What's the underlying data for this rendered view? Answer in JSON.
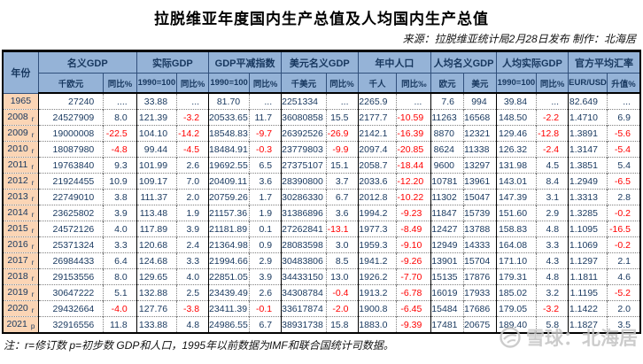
{
  "chart_data": {
    "type": "table",
    "title": "拉脱维亚年度国内生产总值及人均国内生产总值",
    "source": "来源：拉脱维亚统计局2月28日发布  制作：北海居",
    "note": "注：r=修订数 p=初步数 GDP和人口，1995年以前数据为IMF和联合国统计司数据。",
    "column_groups": [
      {
        "label": "年份",
        "span": 1
      },
      {
        "label": "名义GDP",
        "span": 2
      },
      {
        "label": "实际GDP",
        "span": 2
      },
      {
        "label": "GDP平减指数",
        "span": 2
      },
      {
        "label": "美元名义GDP",
        "span": 2
      },
      {
        "label": "年中人口",
        "span": 2
      },
      {
        "label": "人均名义GDP",
        "span": 2
      },
      {
        "label": "人均实际GDP",
        "span": 2
      },
      {
        "label": "官方平均汇率",
        "span": 2
      }
    ],
    "subheaders": [
      "千欧元",
      "同比%",
      "1990=100",
      "同比%",
      "1990=100",
      "同比%",
      "千美元",
      "同比%",
      "千人",
      "同比‰",
      "欧元",
      "美元",
      "1990=100",
      "同比%",
      "EUR/USD",
      "升值%"
    ],
    "rows": [
      {
        "year": "1965",
        "mark": "",
        "values": [
          "27240",
          "....",
          "33.88",
          "...",
          "81.70",
          "...",
          "2251334",
          "...",
          "2265.9",
          "...",
          "7.6",
          "994",
          "39.84",
          "...",
          "82.649",
          "..."
        ]
      },
      {
        "year": "2008",
        "mark": "r",
        "values": [
          "24527909",
          "8.0",
          "121.39",
          "-3.2",
          "20533.65",
          "11.7",
          "36080858",
          "15.5",
          "2177.7",
          "-10.59",
          "11263",
          "16568",
          "148.50",
          "-2.2",
          "1.4710",
          "6.9"
        ]
      },
      {
        "year": "2009",
        "mark": "r",
        "values": [
          "19000008",
          "-22.5",
          "104.10",
          "-14.2",
          "18548.83",
          "-9.7",
          "26392526",
          "-26.9",
          "2142.1",
          "-16.39",
          "8870",
          "12321",
          "129.46",
          "-12.8",
          "1.3891",
          "-5.6"
        ]
      },
      {
        "year": "2010",
        "mark": "r",
        "values": [
          "18087980",
          "-4.8",
          "99.44",
          "-4.5",
          "18484.91",
          "-0.3",
          "23779803",
          "-9.9",
          "2097.4",
          "-20.85",
          "8624",
          "11338",
          "126.32",
          "-2.4",
          "1.3147",
          "-5.4"
        ]
      },
      {
        "year": "2011",
        "mark": "r",
        "values": [
          "19763840",
          "9.3",
          "101.99",
          "2.6",
          "19692.55",
          "6.5",
          "27375107",
          "15.1",
          "2058.7",
          "-18.44",
          "9600",
          "13297",
          "131.98",
          "4.5",
          "1.3851",
          "5.4"
        ]
      },
      {
        "year": "2012",
        "mark": "r",
        "values": [
          "21924455",
          "10.9",
          "109.17",
          "7.0",
          "20409.11",
          "3.6",
          "28390800",
          "3.7",
          "2033.6",
          "-12.20",
          "10781",
          "13961",
          "143.01",
          "8.4",
          "1.2949",
          "-6.5"
        ]
      },
      {
        "year": "2013",
        "mark": "r",
        "values": [
          "22749010",
          "3.8",
          "111.37",
          "2.0",
          "20759.26",
          "1.7",
          "30286330",
          "6.7",
          "2012.8",
          "-10.22",
          "11302",
          "15047",
          "147.39",
          "3.1",
          "1.3313",
          "2.8"
        ]
      },
      {
        "year": "2014",
        "mark": "r",
        "values": [
          "23625802",
          "3.9",
          "113.48",
          "1.9",
          "21157.36",
          "1.9",
          "31386896",
          "3.6",
          "1994.2",
          "-9.23",
          "11847",
          "15739",
          "151.60",
          "2.9",
          "1.3285",
          "-0.2"
        ]
      },
      {
        "year": "2015",
        "mark": "r",
        "values": [
          "24572126",
          "4.0",
          "117.89",
          "3.9",
          "21181.89",
          "0.1",
          "27262841",
          "-13.1",
          "1977.3",
          "-8.49",
          "12427",
          "13788",
          "158.83",
          "4.8",
          "1.1095",
          "-16.5"
        ]
      },
      {
        "year": "2016",
        "mark": "r",
        "values": [
          "25371324",
          "3.3",
          "120.68",
          "2.4",
          "21364.98",
          "0.9",
          "28083598",
          "3.0",
          "1959.3",
          "-9.10",
          "12949",
          "14333",
          "164.08",
          "3.3",
          "1.1069",
          "-0.2"
        ]
      },
      {
        "year": "2017",
        "mark": "r",
        "values": [
          "26984433",
          "6.4",
          "124.68",
          "3.3",
          "21994.66",
          "2.9",
          "30483806",
          "8.5",
          "1941.2",
          "-9.26",
          "13901",
          "15704",
          "171.10",
          "4.3",
          "1.1297",
          "2.1"
        ]
      },
      {
        "year": "2018",
        "mark": "r",
        "values": [
          "29153556",
          "8.0",
          "129.65",
          "4.0",
          "22851.05",
          "3.9",
          "34433150",
          "13.0",
          "1926.2",
          "-7.70",
          "15135",
          "17876",
          "179.31",
          "4.8",
          "1.1811",
          "4.6"
        ]
      },
      {
        "year": "2019",
        "mark": "r",
        "values": [
          "30647222",
          "5.1",
          "132.88",
          "2.5",
          "23439.49",
          "2.6",
          "34308784",
          "-0.4",
          "1913.2",
          "-6.78",
          "16019",
          "17933",
          "185.02",
          "3.2",
          "1.1195",
          "-5.2"
        ]
      },
      {
        "year": "2020",
        "mark": "r",
        "values": [
          "29432664",
          "-4.0",
          "127.76",
          "-3.8",
          "23411.39",
          "-0.1",
          "33617874",
          "-2.0",
          "1900.8",
          "-6.45",
          "15484",
          "17686",
          "179.05",
          "-3.2",
          "1.1422",
          "2.0"
        ]
      },
      {
        "year": "2021",
        "mark": "p",
        "values": [
          "32916556",
          "11.8",
          "133.88",
          "4.8",
          "24986.55",
          "6.7",
          "38931738",
          "15.8",
          "1883.0",
          "-9.39",
          "17481",
          "20675",
          "189.40",
          "5.8",
          "1.1827",
          "3.5"
        ]
      }
    ]
  },
  "watermark": {
    "icon": "snowball-logo",
    "text": "雪球：北海居"
  },
  "colors": {
    "header_bg": "#95B3D7",
    "year_bg": "#FBD5B5",
    "value_text": "#17375E",
    "negative_text": "#FF0000"
  }
}
